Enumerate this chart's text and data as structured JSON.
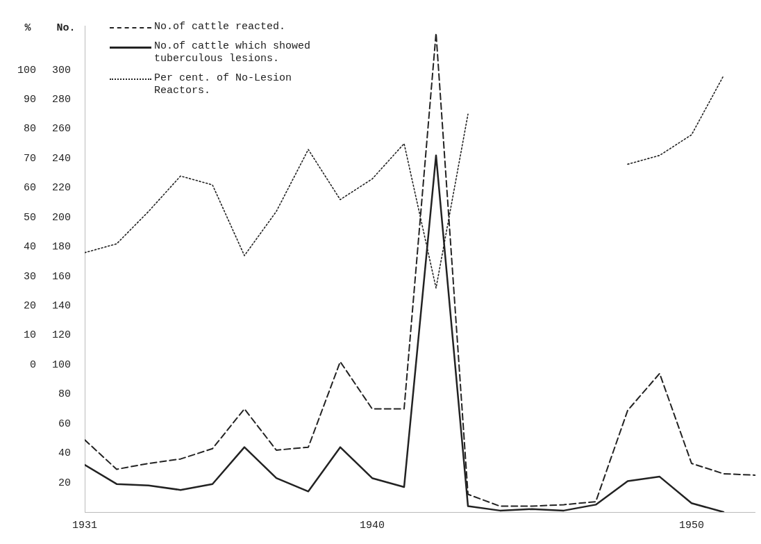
{
  "chart_data": {
    "type": "line",
    "x": [
      1931,
      1932,
      1933,
      1934,
      1935,
      1936,
      1937,
      1938,
      1939,
      1940,
      1941,
      1942,
      1943,
      1944,
      1945,
      1946,
      1947,
      1948,
      1949,
      1950,
      1951,
      1952
    ],
    "xlim": [
      1931,
      1952
    ],
    "xticks": [
      1931,
      1940,
      1950
    ],
    "ylabel": "No.",
    "ylim": [
      0,
      330
    ],
    "yticks": [
      20,
      40,
      60,
      80,
      100,
      120,
      140,
      160,
      180,
      200,
      220,
      240,
      260,
      280,
      300
    ],
    "y2label": "%",
    "y2lim": [
      -50,
      115
    ],
    "y2ticks": [
      0,
      10,
      20,
      30,
      40,
      50,
      60,
      70,
      80,
      90,
      100
    ],
    "series": [
      {
        "name": "No.of cattle reacted.",
        "color": "#222222",
        "line_style": "dashed",
        "values": [
          49,
          29,
          33,
          36,
          43,
          70,
          42,
          44,
          102,
          70,
          70,
          325,
          12,
          4,
          4,
          5,
          7,
          69,
          94,
          33,
          26,
          25
        ]
      },
      {
        "name": "No.of cattle which showed tuberculous lesions.",
        "color": "#222222",
        "line_style": "solid",
        "values": [
          32,
          19,
          18,
          15,
          19,
          44,
          23,
          14,
          44,
          23,
          17,
          242,
          4,
          1,
          2,
          1,
          5,
          21,
          24,
          6,
          0,
          null
        ]
      },
      {
        "name": "Per cent. of No-Lesion Reactors.",
        "color": "#222222",
        "line_style": "dotted",
        "axis": "y2",
        "values": [
          38,
          41,
          52,
          64,
          61,
          37,
          52,
          73,
          56,
          63,
          75,
          26,
          85,
          null,
          null,
          null,
          null,
          68,
          71,
          78,
          98,
          null
        ]
      }
    ],
    "legend": "top left",
    "grid": false,
    "marker": "none"
  }
}
